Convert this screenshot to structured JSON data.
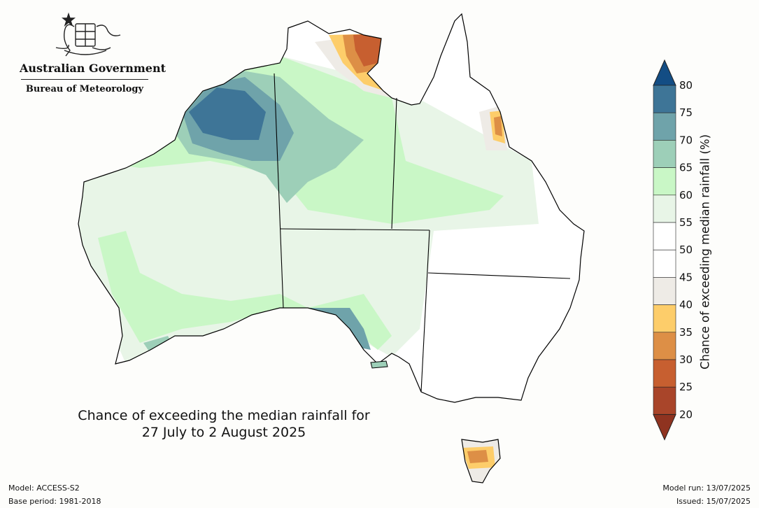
{
  "agency": {
    "government": "Australian Government",
    "bureau": "Bureau of Meteorology"
  },
  "map": {
    "title_line1": "Chance of exceeding the median rainfall for",
    "title_line2": "27 July to 2 August 2025",
    "region": "Australia",
    "land_color": "#ffffff",
    "border_color": "#000000"
  },
  "legend": {
    "label": "Chance of exceeding median rainfall (%)",
    "ticks": [
      "80",
      "75",
      "70",
      "65",
      "60",
      "55",
      "50",
      "45",
      "40",
      "35",
      "30",
      "25",
      "20"
    ],
    "bins": [
      {
        "range": "<20",
        "color": "#8f3320"
      },
      {
        "range": "20-25",
        "color": "#a9452a"
      },
      {
        "range": "25-30",
        "color": "#c75f30"
      },
      {
        "range": "30-35",
        "color": "#dd8f46"
      },
      {
        "range": "35-40",
        "color": "#fdcd6a"
      },
      {
        "range": "40-45",
        "color": "#eeebe6"
      },
      {
        "range": "45-50",
        "color": "#ffffff"
      },
      {
        "range": "50-55",
        "color": "#ffffff"
      },
      {
        "range": "55-60",
        "color": "#e8f5e7"
      },
      {
        "range": "60-65",
        "color": "#c9f7c6"
      },
      {
        "range": "65-70",
        "color": "#9dcfb8"
      },
      {
        "range": "70-75",
        "color": "#6fa3aa"
      },
      {
        "range": "75-80",
        "color": "#3e7597"
      },
      {
        "range": ">80",
        "color": "#134d84"
      }
    ]
  },
  "footer": {
    "model": "Model: ACCESS-S2",
    "base_period": "Base period: 1981-2018",
    "model_run": "Model run: 13/07/2025",
    "issued": "Issued: 15/07/2025"
  }
}
